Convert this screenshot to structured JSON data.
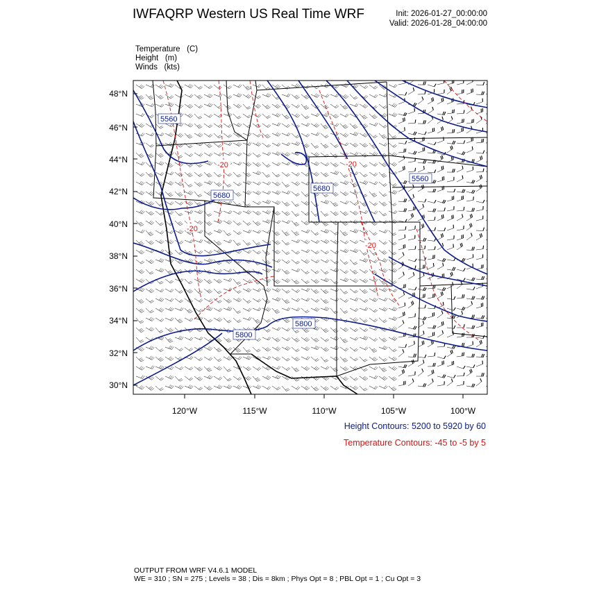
{
  "header": {
    "title": "IWFAQRP Western US Real Time WRF",
    "init": "Init: 2026-01-27_00:00:00",
    "valid": "Valid: 2026-01-28_04:00:00"
  },
  "fields": [
    {
      "name": "Temperature",
      "unit": "(C)"
    },
    {
      "name": "Height",
      "unit": "(m)"
    },
    {
      "name": "Winds",
      "unit": "(kts)"
    }
  ],
  "axes": {
    "lat_labels": [
      "48°N",
      "46°N",
      "44°N",
      "42°N",
      "40°N",
      "38°N",
      "36°N",
      "34°N",
      "32°N",
      "30°N"
    ],
    "lat_values": [
      48,
      46,
      44,
      42,
      40,
      38,
      36,
      34,
      32,
      30
    ],
    "lon_labels": [
      "120°W",
      "115°W",
      "110°W",
      "105°W",
      "100°W"
    ],
    "lon_values": [
      -120,
      -115,
      -110,
      -105,
      -100
    ]
  },
  "height_labels": [
    "5560",
    "5680",
    "5680",
    "5560",
    "5800",
    "5800"
  ],
  "temp_labels": [
    "-20",
    "-20",
    "-20",
    "-20"
  ],
  "legend": {
    "height": "Height Contours: 5200 to 5920 by 60",
    "temperature": "Temperature Contours: -45 to -5 by 5"
  },
  "colors": {
    "height": "#0a1a8c",
    "temperature": "#e01010"
  },
  "footer": {
    "line1": "OUTPUT FROM WRF V4.6.1 MODEL",
    "line2": "WE = 310 ; SN = 275 ; Levels = 38 ; Dis = 8km ; Phys Opt = 8 ; PBL Opt = 1 ; Cu Opt = 3"
  }
}
